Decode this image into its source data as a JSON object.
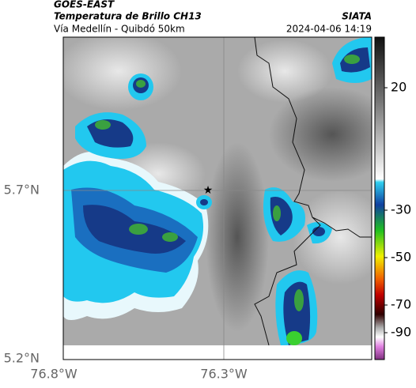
{
  "header": {
    "source": "GOES-EAST",
    "title": "Temperatura de Brillo CH13",
    "subtitle": "Vía Medellín - Quibdó 50km",
    "brand": "SIATA",
    "timestamp": "2024-04-06 14:19"
  },
  "map": {
    "lat_labels": [
      "5.7°N",
      "5.2°N"
    ],
    "lon_labels": [
      "76.8°W",
      "76.3°W"
    ]
  },
  "colorbar": {
    "ticks": [
      "20",
      "-30",
      "-50",
      "-70",
      "-90"
    ]
  }
}
